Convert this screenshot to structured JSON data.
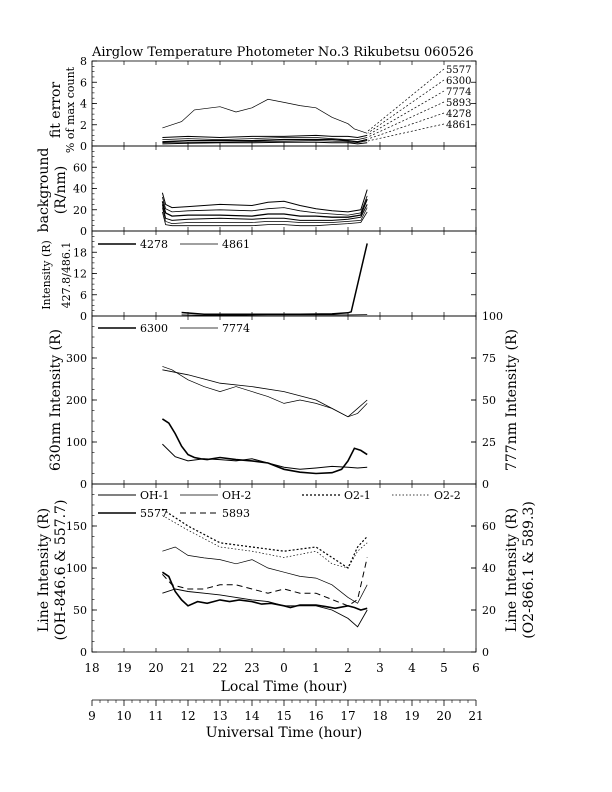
{
  "figure_title": "Airglow Temperature Photometer No.3   Rikubetsu   060526",
  "chart_data": [
    {
      "panel": "fit-error",
      "type": "line",
      "ylabel_lines": [
        "fit error",
        "% of max count"
      ],
      "ylim": [
        0,
        8
      ],
      "yticks": [
        0,
        2,
        4,
        6,
        8
      ],
      "labels": [
        "5577",
        "6300",
        "7774",
        "5893",
        "4278",
        "4861"
      ],
      "series": [
        {
          "name": "5577",
          "x": [
            11.2,
            11.8,
            12.2,
            13.0,
            13.5,
            14.0,
            14.5,
            15.0,
            15.5,
            16.0,
            16.5,
            17.0,
            17.2,
            17.6
          ],
          "y": [
            1.7,
            2.3,
            3.4,
            3.7,
            3.2,
            3.6,
            4.4,
            4.1,
            3.8,
            3.6,
            2.7,
            2.1,
            1.6,
            1.2
          ]
        },
        {
          "series_id": "s2",
          "x": [
            11.2,
            12.0,
            13.0,
            14.0,
            15.0,
            16.0,
            16.5,
            17.0,
            17.3,
            17.6
          ],
          "y": [
            0.8,
            0.9,
            0.8,
            0.9,
            0.9,
            1.0,
            0.9,
            0.9,
            0.8,
            1.0
          ]
        },
        {
          "series_id": "s3",
          "x": [
            11.2,
            12.0,
            13.0,
            14.0,
            15.0,
            16.0,
            16.5,
            17.0,
            17.3,
            17.6
          ],
          "y": [
            0.6,
            0.7,
            0.6,
            0.7,
            0.8,
            0.8,
            0.7,
            0.6,
            0.6,
            0.8
          ]
        },
        {
          "series_id": "s4",
          "x": [
            11.2,
            12.0,
            13.0,
            14.0,
            15.0,
            16.0,
            16.5,
            17.0,
            17.3,
            17.6
          ],
          "y": [
            0.4,
            0.5,
            0.5,
            0.5,
            0.6,
            0.6,
            0.6,
            0.5,
            0.4,
            0.6
          ]
        },
        {
          "series_id": "s5",
          "x": [
            11.2,
            12.0,
            13.0,
            14.0,
            15.0,
            16.0,
            16.5,
            17.0,
            17.3,
            17.6
          ],
          "y": [
            0.3,
            0.35,
            0.35,
            0.4,
            0.45,
            0.5,
            0.45,
            0.4,
            0.3,
            0.5
          ]
        },
        {
          "series_id": "s6",
          "x": [
            11.2,
            12.0,
            13.0,
            14.0,
            15.0,
            16.0,
            16.5,
            17.0,
            17.3,
            17.6
          ],
          "y": [
            0.2,
            0.25,
            0.3,
            0.3,
            0.35,
            0.35,
            0.3,
            0.3,
            0.2,
            0.3
          ]
        }
      ]
    },
    {
      "panel": "background",
      "type": "line",
      "ylabel_lines": [
        "background",
        "(R/nm)"
      ],
      "ylim": [
        0,
        80
      ],
      "yticks": [
        0,
        20,
        40,
        60
      ],
      "series": [
        {
          "series_id": "b1",
          "x": [
            11.2,
            11.3,
            11.5,
            12.0,
            13.0,
            14.0,
            14.5,
            15.0,
            15.5,
            16.0,
            16.5,
            17.0,
            17.4,
            17.6
          ],
          "y": [
            36,
            25,
            22,
            23,
            25,
            24,
            27,
            28,
            24,
            21,
            19,
            18,
            20,
            39
          ]
        },
        {
          "series_id": "b2",
          "x": [
            11.2,
            11.3,
            11.5,
            12.0,
            13.0,
            14.0,
            14.5,
            15.0,
            15.5,
            16.0,
            16.5,
            17.0,
            17.4,
            17.6
          ],
          "y": [
            32,
            21,
            18,
            19,
            20,
            19,
            21,
            22,
            19,
            17,
            16,
            15,
            17,
            33
          ]
        },
        {
          "series_id": "b3",
          "x": [
            11.2,
            11.3,
            11.5,
            12.0,
            13.0,
            14.0,
            14.5,
            15.0,
            15.5,
            16.0,
            16.5,
            17.0,
            17.4,
            17.6
          ],
          "y": [
            28,
            17,
            14,
            15,
            15,
            14,
            16,
            16,
            14,
            14,
            13,
            13,
            15,
            30
          ]
        },
        {
          "series_id": "b4",
          "x": [
            11.2,
            11.3,
            11.5,
            12.0,
            13.0,
            14.0,
            14.5,
            15.0,
            15.5,
            16.0,
            16.5,
            17.0,
            17.4,
            17.6
          ],
          "y": [
            25,
            12,
            10,
            11,
            12,
            11,
            12,
            12,
            10,
            10,
            10,
            11,
            13,
            25
          ]
        },
        {
          "series_id": "b5",
          "x": [
            11.2,
            11.3,
            11.5,
            12.0,
            13.0,
            14.0,
            14.5,
            15.0,
            15.5,
            16.0,
            16.5,
            17.0,
            17.4,
            17.6
          ],
          "y": [
            22,
            9,
            7,
            8,
            8,
            8,
            9,
            9,
            8,
            8,
            8,
            9,
            10,
            22
          ]
        },
        {
          "series_id": "b6",
          "x": [
            11.2,
            11.3,
            11.5,
            12.0,
            13.0,
            14.0,
            14.5,
            15.0,
            15.5,
            16.0,
            16.5,
            17.0,
            17.4,
            17.6
          ],
          "y": [
            18,
            6,
            5,
            5,
            5,
            5,
            6,
            6,
            5,
            5,
            6,
            7,
            8,
            18
          ]
        }
      ]
    },
    {
      "panel": "n2-hbeta",
      "type": "line",
      "ylabel_lines": [
        "427.8/486.1",
        "Intensity (R)"
      ],
      "ylim": [
        0,
        24
      ],
      "yticks": [
        0,
        6,
        12,
        18
      ],
      "series": [
        {
          "name": "4278",
          "x": [
            11.8,
            12.5,
            13.5,
            14.5,
            15.5,
            16.5,
            17.0,
            17.1,
            17.6
          ],
          "y": [
            1.0,
            0.5,
            0.5,
            0.5,
            0.5,
            0.6,
            0.9,
            1.2,
            20.5
          ]
        },
        {
          "name": "4861",
          "x": [
            11.8,
            12.5,
            13.5,
            14.5,
            15.5,
            16.5,
            17.0,
            17.6
          ],
          "y": [
            0.3,
            0.2,
            0.2,
            0.3,
            0.3,
            0.3,
            0.3,
            0.4
          ]
        }
      ]
    },
    {
      "panel": "oi-red-nir",
      "type": "line",
      "ylabel_left": "630nm Intensity  (R)",
      "ylabel_right": "777nm Intensity  (R)",
      "ylim": [
        0,
        400
      ],
      "yticks": [
        0,
        100,
        200,
        300
      ],
      "ylim_right": [
        0,
        100
      ],
      "yticks_right": [
        0,
        25,
        50,
        75,
        100
      ],
      "series": [
        {
          "name": "6300",
          "x": [
            11.2,
            11.4,
            11.6,
            11.8,
            12.0,
            12.2,
            12.4,
            12.6,
            13.0,
            13.5,
            14.0,
            14.5,
            15.0,
            15.5,
            16.0,
            16.5,
            16.8,
            17.0,
            17.2,
            17.4,
            17.6
          ],
          "y": [
            155,
            145,
            120,
            90,
            70,
            63,
            60,
            58,
            63,
            58,
            55,
            50,
            35,
            28,
            25,
            27,
            35,
            55,
            85,
            80,
            70
          ]
        },
        {
          "name": "7774",
          "x": [
            11.2,
            11.5,
            12.0,
            12.5,
            13.0,
            13.5,
            14.0,
            14.5,
            15.0,
            15.5,
            16.0,
            16.5,
            17.0,
            17.3,
            17.6
          ],
          "y": [
            70,
            68,
            62,
            58,
            55,
            58,
            55,
            52,
            48,
            50,
            48,
            45,
            40,
            42,
            48
          ]
        },
        {
          "series_id": "o3",
          "x": [
            11.2,
            11.6,
            12.0,
            12.5,
            13.0,
            13.5,
            14.0,
            14.5,
            15.0,
            15.5,
            16.0,
            16.5,
            17.0,
            17.3,
            17.6
          ],
          "y": [
            95,
            65,
            55,
            60,
            58,
            55,
            60,
            50,
            40,
            35,
            38,
            42,
            40,
            38,
            40
          ]
        },
        {
          "series_id": "o4",
          "x": [
            11.2,
            12.0,
            13.0,
            14.0,
            15.0,
            16.0,
            16.5,
            17.0,
            17.3,
            17.6
          ],
          "y": [
            68,
            65,
            60,
            58,
            55,
            50,
            45,
            40,
            45,
            50
          ]
        }
      ]
    },
    {
      "panel": "oh-o2-557-589",
      "type": "line",
      "ylabel_left_lines": [
        "Line Intensity  (R)",
        "(OH-846.6 & 557.7)"
      ],
      "ylabel_right_lines": [
        "Line Intensity  (R)",
        "(O2-866.1 & 589.3)"
      ],
      "ylim": [
        0,
        200
      ],
      "yticks": [
        0,
        50,
        100,
        150
      ],
      "ylim_right": [
        0,
        80
      ],
      "yticks_right": [
        0,
        20,
        40,
        60
      ],
      "series": [
        {
          "name": "OH-1",
          "x": [
            11.2,
            11.6,
            12.0,
            12.5,
            13.0,
            13.5,
            14.0,
            14.5,
            15.0,
            15.5,
            16.0,
            16.5,
            17.0,
            17.3,
            17.6
          ],
          "y": [
            70,
            75,
            72,
            70,
            68,
            65,
            62,
            60,
            55,
            55,
            55,
            50,
            40,
            30,
            50
          ]
        },
        {
          "name": "OH-2",
          "x": [
            11.2,
            11.6,
            12.0,
            12.5,
            13.0,
            13.5,
            14.0,
            14.5,
            15.0,
            15.5,
            16.0,
            16.5,
            17.0,
            17.3,
            17.6
          ],
          "y": [
            120,
            125,
            115,
            112,
            110,
            105,
            110,
            100,
            95,
            90,
            88,
            80,
            65,
            58,
            80
          ]
        },
        {
          "name": "O2-1",
          "x": [
            11.2,
            12.0,
            13.0,
            14.0,
            15.0,
            16.0,
            16.5,
            17.0,
            17.3,
            17.6
          ],
          "y": [
            68,
            60,
            52,
            50,
            48,
            50,
            45,
            40,
            50,
            55
          ]
        },
        {
          "name": "O2-2",
          "x": [
            11.2,
            12.0,
            13.0,
            14.0,
            15.0,
            16.0,
            16.5,
            17.0,
            17.3,
            17.6
          ],
          "y": [
            65,
            58,
            50,
            48,
            45,
            48,
            42,
            40,
            48,
            52
          ]
        },
        {
          "name": "5577",
          "x": [
            11.2,
            11.4,
            11.6,
            11.8,
            12.0,
            12.3,
            12.6,
            13.0,
            13.3,
            13.6,
            14.0,
            14.3,
            14.6,
            15.0,
            15.2,
            15.5,
            16.0,
            16.3,
            16.6,
            17.0,
            17.2,
            17.4,
            17.6
          ],
          "y": [
            95,
            90,
            72,
            62,
            55,
            60,
            58,
            62,
            60,
            62,
            60,
            57,
            58,
            55,
            53,
            56,
            56,
            54,
            52,
            55,
            53,
            50,
            52
          ]
        },
        {
          "name": "5893",
          "x": [
            11.2,
            11.5,
            12.0,
            12.5,
            13.0,
            13.5,
            14.0,
            14.5,
            15.0,
            15.5,
            16.0,
            16.5,
            17.0,
            17.3,
            17.6
          ],
          "y": [
            37,
            32,
            30,
            30,
            32,
            32,
            30,
            28,
            30,
            28,
            28,
            25,
            22,
            25,
            45
          ]
        }
      ]
    }
  ],
  "x_axes": {
    "lt": {
      "label": "Local Time (hour)",
      "ticks": [
        "18",
        "19",
        "20",
        "21",
        "22",
        "23",
        "0",
        "1",
        "2",
        "3",
        "4",
        "5",
        "6"
      ]
    },
    "ut": {
      "label": "Universal Time (hour)",
      "ticks": [
        "9",
        "10",
        "11",
        "12",
        "13",
        "14",
        "15",
        "16",
        "17",
        "18",
        "19",
        "20",
        "21"
      ]
    }
  }
}
